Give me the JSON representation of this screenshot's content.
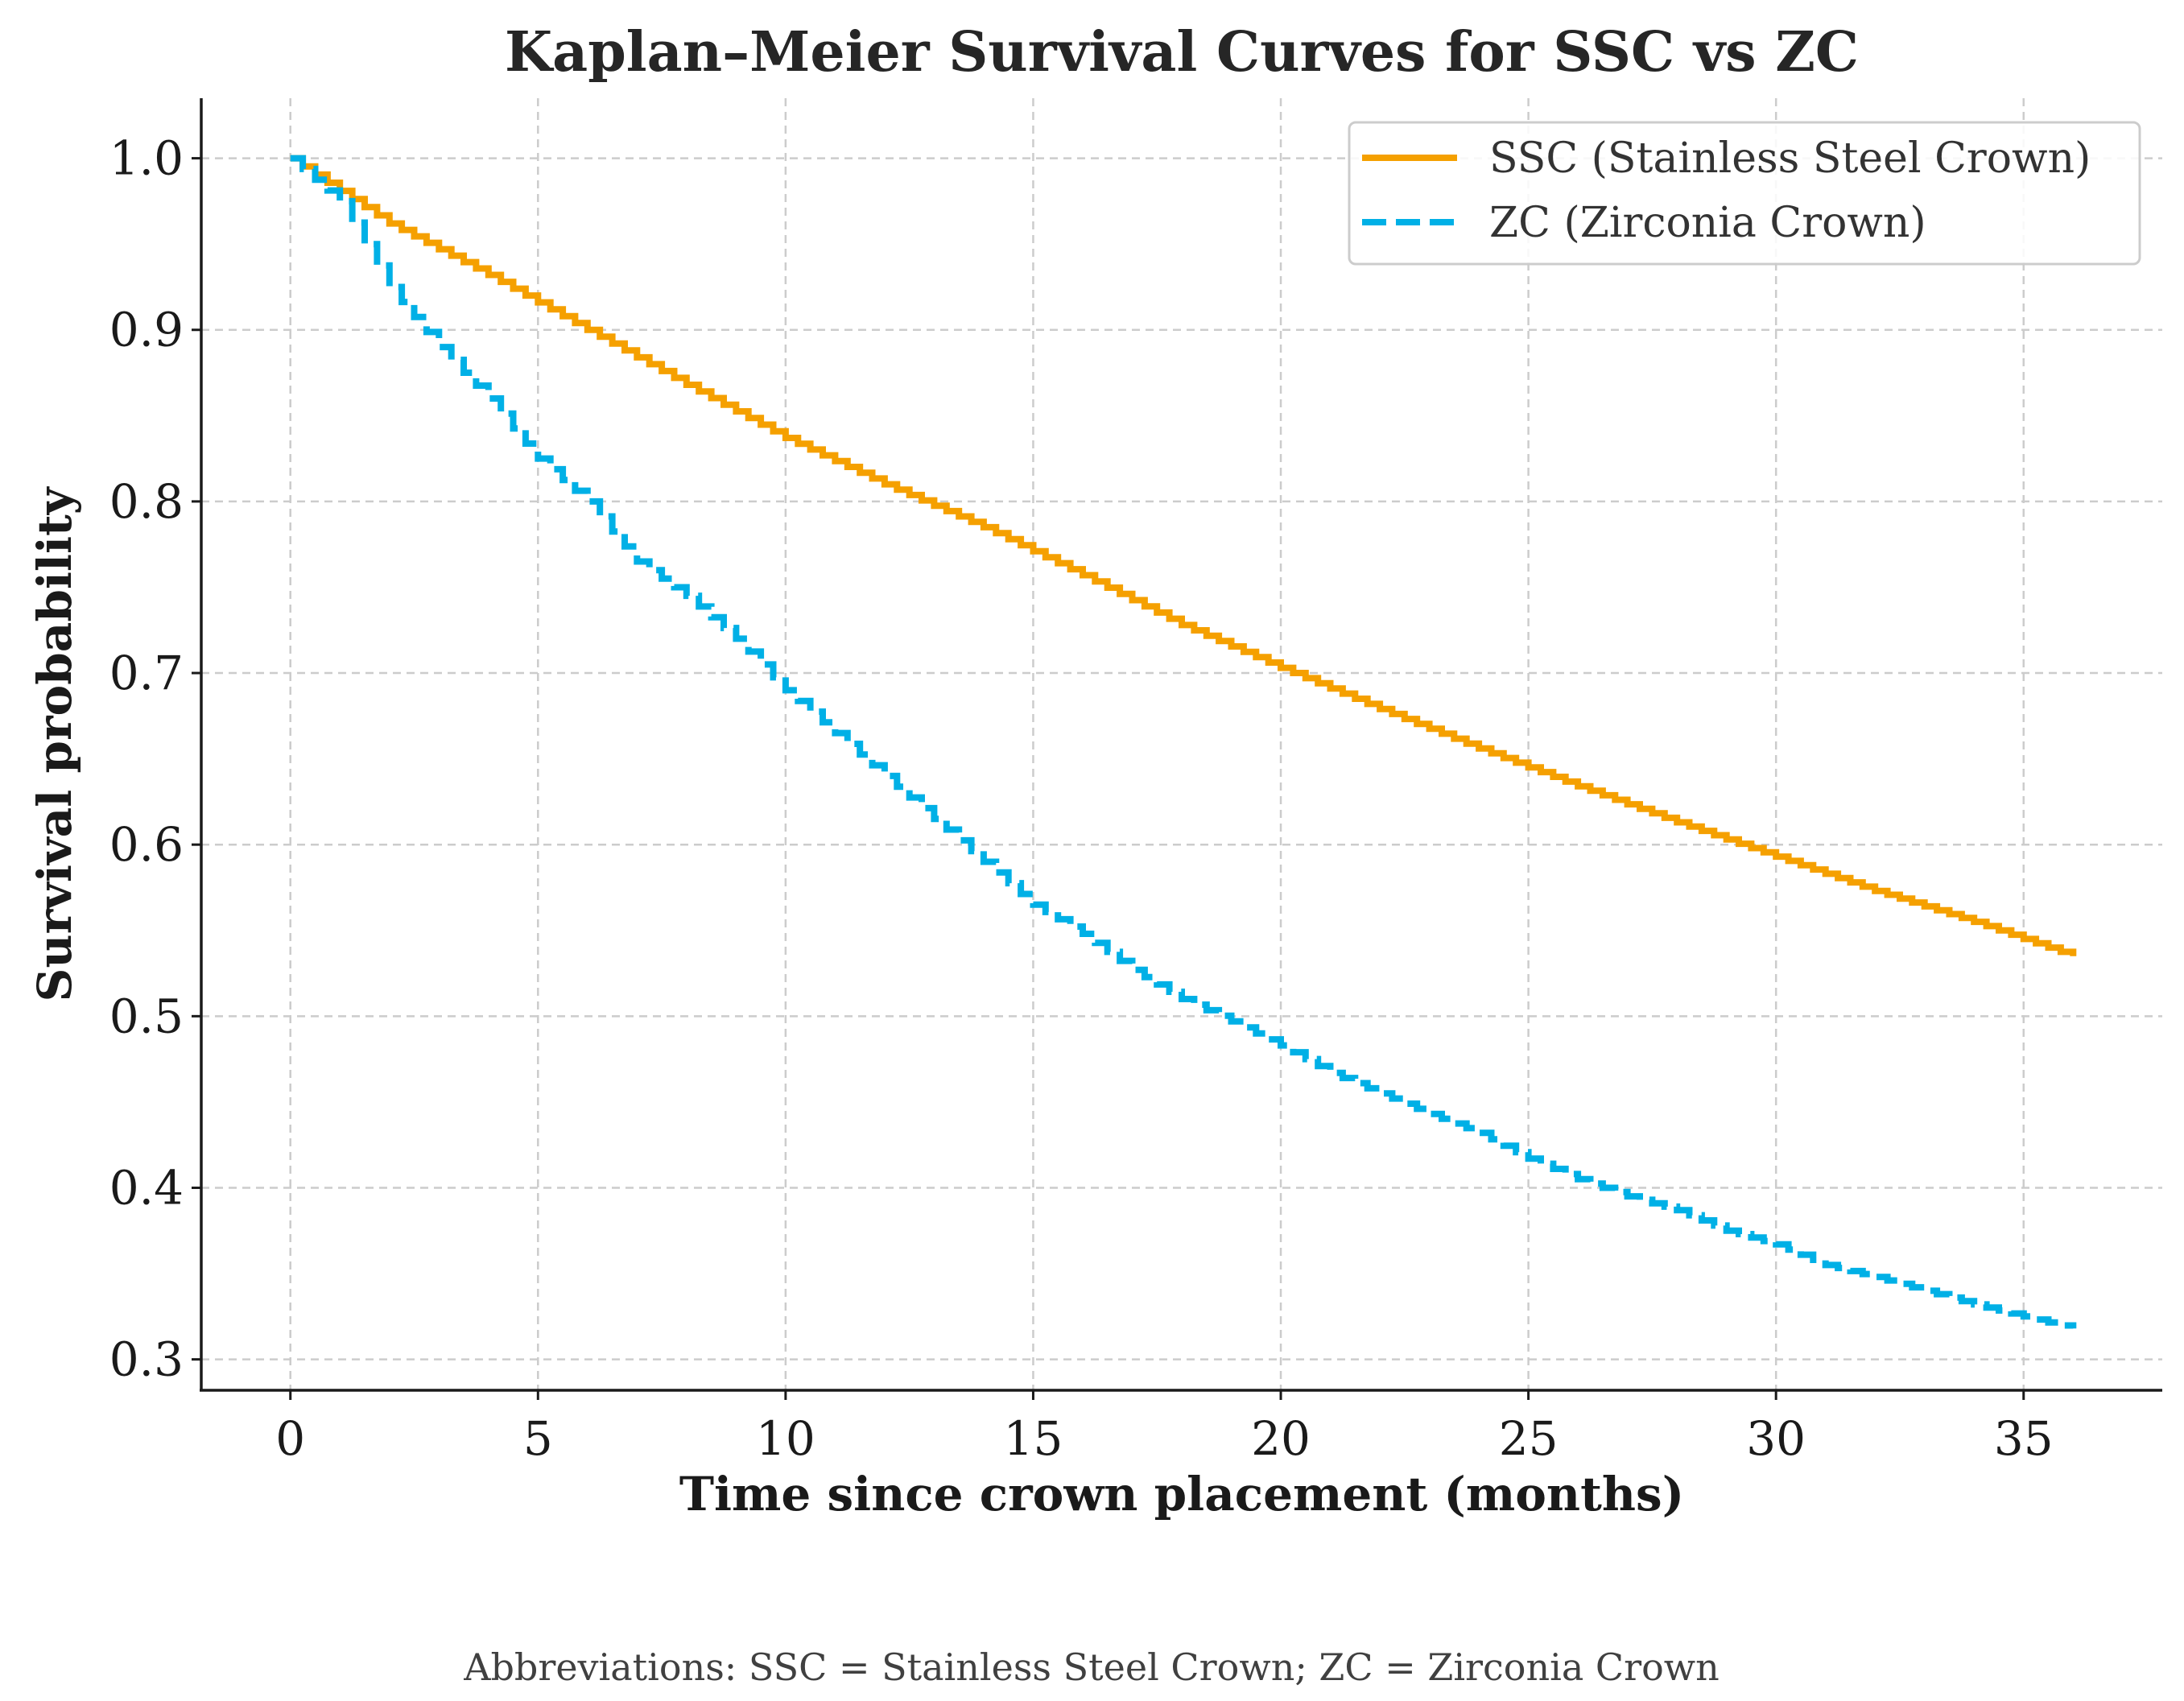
{
  "chart_data": {
    "type": "line",
    "title": "Kaplan–Meier Survival Curves for SSC vs ZC",
    "xlabel": "Time since crown placement (months)",
    "ylabel": "Survival probability",
    "xlim": [
      -1.8,
      37.8
    ],
    "ylim": [
      0.282,
      1.035
    ],
    "x_ticks": [
      0,
      5,
      10,
      15,
      20,
      25,
      30,
      35
    ],
    "y_ticks": [
      0.3,
      0.4,
      0.5,
      0.6,
      0.7,
      0.8,
      0.9,
      1.0
    ],
    "grid": true,
    "legend_position": "top-right",
    "series": [
      {
        "name": "SSC (Stainless Steel Crown)",
        "color": "#f5a000",
        "style": "solid step",
        "x": [
          0,
          2,
          4,
          6,
          8,
          10,
          12,
          14,
          16,
          18,
          20,
          22,
          24,
          26,
          28,
          30,
          32,
          34,
          36
        ],
        "y": [
          1.0,
          0.962,
          0.932,
          0.9,
          0.868,
          0.837,
          0.81,
          0.785,
          0.757,
          0.728,
          0.703,
          0.679,
          0.656,
          0.634,
          0.613,
          0.593,
          0.573,
          0.555,
          0.535
        ]
      },
      {
        "name": "ZC (Zirconia Crown)",
        "color": "#00b0e6",
        "style": "dashed step",
        "x": [
          0,
          1,
          2,
          3,
          4,
          5,
          6,
          7,
          8,
          9,
          10,
          11,
          12,
          13,
          14,
          15,
          16,
          17,
          18,
          19,
          20,
          21,
          22,
          23,
          24,
          25,
          26,
          27,
          28,
          29,
          30,
          31,
          32,
          33,
          34,
          35,
          36
        ],
        "y": [
          1.0,
          0.975,
          0.925,
          0.89,
          0.86,
          0.825,
          0.8,
          0.765,
          0.745,
          0.72,
          0.69,
          0.665,
          0.64,
          0.615,
          0.59,
          0.565,
          0.548,
          0.527,
          0.51,
          0.497,
          0.483,
          0.467,
          0.455,
          0.443,
          0.432,
          0.417,
          0.405,
          0.395,
          0.387,
          0.375,
          0.367,
          0.355,
          0.348,
          0.34,
          0.332,
          0.325,
          0.318
        ]
      }
    ],
    "footnote": "Abbreviations: SSC = Stainless Steel Crown; ZC = Zirconia Crown"
  }
}
